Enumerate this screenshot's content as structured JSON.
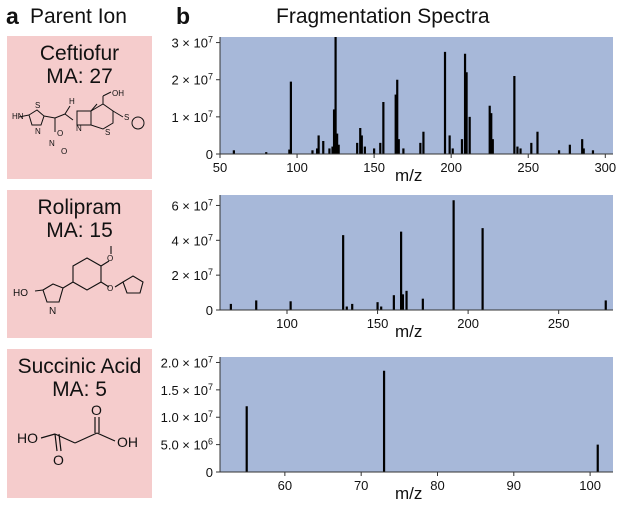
{
  "panels": {
    "a": {
      "letter": "a",
      "title": "Parent Ion"
    },
    "b": {
      "letter": "b",
      "title": "Fragmentation Spectra"
    }
  },
  "molecules": [
    {
      "name": "Ceftiofur",
      "ma": "MA: 27"
    },
    {
      "name": "Rolipram",
      "ma": "MA: 15"
    },
    {
      "name": "Succinic Acid",
      "ma": "MA: 5"
    }
  ],
  "colors": {
    "plot_bg": "#a7b8d9",
    "card_bg": "#f5cccc",
    "peak": "#000000"
  },
  "chart_data": [
    {
      "type": "bar",
      "title": "Ceftiofur",
      "xlabel": "m/z",
      "xlim": [
        50,
        305
      ],
      "ylim": [
        0,
        31500000
      ],
      "xticks": [
        {
          "value": 50,
          "label": "50"
        },
        {
          "value": 100,
          "label": "100"
        },
        {
          "value": 150,
          "label": "150"
        },
        {
          "value": 200,
          "label": "200"
        },
        {
          "value": 250,
          "label": "250"
        },
        {
          "value": 300,
          "label": "300"
        }
      ],
      "yticks": [
        {
          "value": 0,
          "label": "0"
        },
        {
          "value": 10000000,
          "label": "1 × 10^7"
        },
        {
          "value": 20000000,
          "label": "2 × 10^7"
        },
        {
          "value": 30000000,
          "label": "3 × 10^7"
        }
      ],
      "peaks": [
        {
          "mz": 59,
          "intensity": 1000000
        },
        {
          "mz": 80,
          "intensity": 500000
        },
        {
          "mz": 95,
          "intensity": 1200000
        },
        {
          "mz": 96,
          "intensity": 19500000
        },
        {
          "mz": 110,
          "intensity": 1000000
        },
        {
          "mz": 113,
          "intensity": 1500000
        },
        {
          "mz": 114,
          "intensity": 5000000
        },
        {
          "mz": 117,
          "intensity": 3500000
        },
        {
          "mz": 121,
          "intensity": 1500000
        },
        {
          "mz": 123,
          "intensity": 2000000
        },
        {
          "mz": 124,
          "intensity": 12000000
        },
        {
          "mz": 125,
          "intensity": 33000000
        },
        {
          "mz": 126,
          "intensity": 5500000
        },
        {
          "mz": 127,
          "intensity": 2500000
        },
        {
          "mz": 139,
          "intensity": 3000000
        },
        {
          "mz": 141,
          "intensity": 7000000
        },
        {
          "mz": 142,
          "intensity": 5000000
        },
        {
          "mz": 144,
          "intensity": 2000000
        },
        {
          "mz": 150,
          "intensity": 1500000
        },
        {
          "mz": 154,
          "intensity": 3000000
        },
        {
          "mz": 156,
          "intensity": 14000000
        },
        {
          "mz": 164,
          "intensity": 16000000
        },
        {
          "mz": 165,
          "intensity": 20000000
        },
        {
          "mz": 166,
          "intensity": 4000000
        },
        {
          "mz": 169,
          "intensity": 1500000
        },
        {
          "mz": 180,
          "intensity": 3000000
        },
        {
          "mz": 182,
          "intensity": 6000000
        },
        {
          "mz": 196,
          "intensity": 27500000
        },
        {
          "mz": 199,
          "intensity": 5000000
        },
        {
          "mz": 201,
          "intensity": 1500000
        },
        {
          "mz": 207,
          "intensity": 4000000
        },
        {
          "mz": 209,
          "intensity": 27000000
        },
        {
          "mz": 210,
          "intensity": 22000000
        },
        {
          "mz": 212,
          "intensity": 10000000
        },
        {
          "mz": 225,
          "intensity": 13000000
        },
        {
          "mz": 226,
          "intensity": 11000000
        },
        {
          "mz": 227,
          "intensity": 4000000
        },
        {
          "mz": 241,
          "intensity": 21000000
        },
        {
          "mz": 243,
          "intensity": 2000000
        },
        {
          "mz": 245,
          "intensity": 1500000
        },
        {
          "mz": 252,
          "intensity": 3000000
        },
        {
          "mz": 256,
          "intensity": 6000000
        },
        {
          "mz": 270,
          "intensity": 1000000
        },
        {
          "mz": 277,
          "intensity": 2500000
        },
        {
          "mz": 285,
          "intensity": 4000000
        },
        {
          "mz": 286,
          "intensity": 1500000
        },
        {
          "mz": 292,
          "intensity": 1000000
        }
      ]
    },
    {
      "type": "bar",
      "title": "Rolipram",
      "xlabel": "m/z",
      "xlim": [
        63,
        280
      ],
      "ylim": [
        0,
        66000000
      ],
      "xticks": [
        {
          "value": 100,
          "label": "100"
        },
        {
          "value": 150,
          "label": "150"
        },
        {
          "value": 200,
          "label": "200"
        },
        {
          "value": 250,
          "label": "250"
        }
      ],
      "yticks": [
        {
          "value": 0,
          "label": "0"
        },
        {
          "value": 20000000,
          "label": "2 × 10^7"
        },
        {
          "value": 40000000,
          "label": "4 × 10^7"
        },
        {
          "value": 60000000,
          "label": "6 × 10^7"
        }
      ],
      "peaks": [
        {
          "mz": 69,
          "intensity": 3500000
        },
        {
          "mz": 83,
          "intensity": 5500000
        },
        {
          "mz": 102,
          "intensity": 5000000
        },
        {
          "mz": 131,
          "intensity": 43000000
        },
        {
          "mz": 133,
          "intensity": 2000000
        },
        {
          "mz": 136,
          "intensity": 3500000
        },
        {
          "mz": 150,
          "intensity": 4500000
        },
        {
          "mz": 152,
          "intensity": 2000000
        },
        {
          "mz": 159,
          "intensity": 8500000
        },
        {
          "mz": 163,
          "intensity": 45000000
        },
        {
          "mz": 164,
          "intensity": 9000000
        },
        {
          "mz": 166,
          "intensity": 11000000
        },
        {
          "mz": 175,
          "intensity": 6500000
        },
        {
          "mz": 192,
          "intensity": 63000000
        },
        {
          "mz": 208,
          "intensity": 47000000
        },
        {
          "mz": 276,
          "intensity": 5500000
        }
      ]
    },
    {
      "type": "bar",
      "title": "Succinic Acid",
      "xlabel": "m/z",
      "xlim": [
        51.5,
        103
      ],
      "ylim": [
        0,
        21000000
      ],
      "xticks": [
        {
          "value": 60,
          "label": "60"
        },
        {
          "value": 70,
          "label": "70"
        },
        {
          "value": 80,
          "label": "80"
        },
        {
          "value": 90,
          "label": "90"
        },
        {
          "value": 100,
          "label": "100"
        }
      ],
      "yticks": [
        {
          "value": 0,
          "label": "0"
        },
        {
          "value": 5000000,
          "label": "5.0 × 10^6"
        },
        {
          "value": 10000000,
          "label": "1.0 × 10^7"
        },
        {
          "value": 15000000,
          "label": "1.5 × 10^7"
        },
        {
          "value": 20000000,
          "label": "2.0 × 10^7"
        }
      ],
      "peaks": [
        {
          "mz": 55,
          "intensity": 12000000
        },
        {
          "mz": 73,
          "intensity": 18500000
        },
        {
          "mz": 101,
          "intensity": 5000000
        }
      ]
    }
  ]
}
